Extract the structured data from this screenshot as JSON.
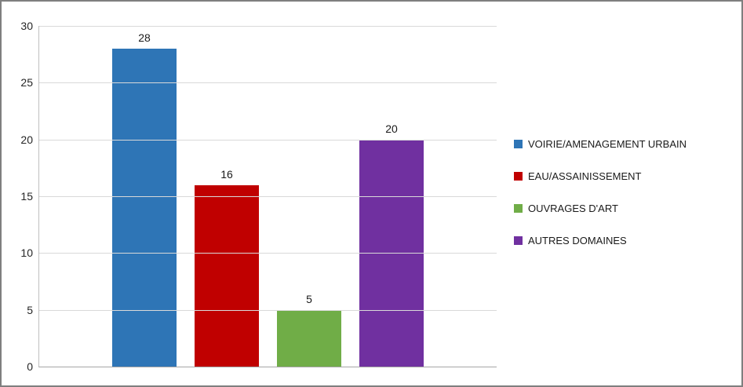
{
  "chart_data": {
    "type": "bar",
    "categories": [
      "VOIRIE/AMENAGEMENT URBAIN",
      "EAU/ASSAINISSEMENT",
      "OUVRAGES D'ART",
      "AUTRES DOMAINES"
    ],
    "values": [
      28,
      16,
      5,
      20
    ],
    "colors": [
      "#2e75b6",
      "#c00000",
      "#70ad47",
      "#7030a0"
    ],
    "value_labels": [
      "28",
      "16",
      "5",
      "20"
    ],
    "title": "",
    "xlabel": "",
    "ylabel": "",
    "ylim": [
      0,
      30
    ],
    "yticks": [
      0,
      5,
      10,
      15,
      20,
      25,
      30
    ],
    "grid": true,
    "grid_color": "#d9d9d9",
    "axis_color": "#a6a6a6",
    "legend_position": "right"
  }
}
